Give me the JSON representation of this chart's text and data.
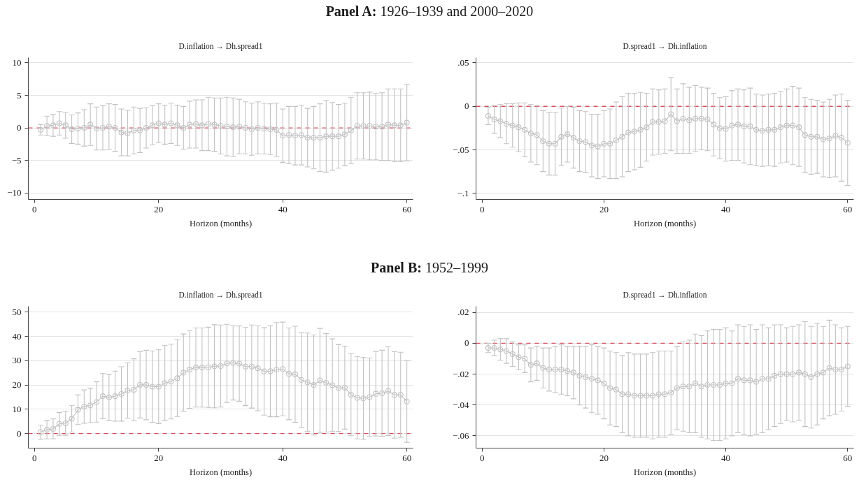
{
  "chart_data": [
    {
      "type": "line",
      "title": "Panel A: 1926–1939 and 2000–2020",
      "subtitle": "D.inflation → Dh.spread1",
      "xlabel": "Horizon (months)",
      "color": "#c2c2c2",
      "marker": "circle",
      "line_style": "solid",
      "grid": "y",
      "xlim": [
        -1,
        61
      ],
      "xticks": [
        0,
        20,
        40,
        60
      ],
      "ylim": [
        -11,
        10.8
      ],
      "yticks": [
        {
          "value": -10,
          "label": "−10"
        },
        {
          "value": -5,
          "label": "−5"
        },
        0,
        5,
        10
      ],
      "ref_lines": [
        {
          "axis": "y",
          "value": 0,
          "color": "#d5505f",
          "line_style": "dashed"
        }
      ],
      "x": [
        1,
        2,
        3,
        4,
        5,
        6,
        7,
        8,
        9,
        10,
        11,
        12,
        13,
        14,
        15,
        16,
        17,
        18,
        19,
        20,
        21,
        22,
        23,
        24,
        25,
        26,
        27,
        28,
        29,
        30,
        31,
        32,
        33,
        34,
        35,
        36,
        37,
        38,
        39,
        40,
        41,
        42,
        43,
        44,
        45,
        46,
        47,
        48,
        49,
        50,
        51,
        52,
        53,
        54,
        55,
        56,
        57,
        58,
        59,
        60
      ],
      "values": [
        -0.3,
        0.3,
        0.4,
        0.7,
        0.4,
        -0.2,
        -0.1,
        0.0,
        0.5,
        -0.1,
        0.0,
        0.2,
        0.0,
        -0.7,
        -0.8,
        -0.4,
        -0.4,
        0.0,
        0.4,
        0.7,
        0.5,
        0.7,
        0.4,
        0.0,
        0.5,
        0.6,
        0.4,
        0.6,
        0.5,
        0.3,
        0.2,
        0.1,
        0.2,
        0.0,
        -0.2,
        0.0,
        -0.1,
        -0.2,
        -0.3,
        -1.2,
        -1.1,
        -1.2,
        -1.1,
        -1.5,
        -1.5,
        -1.5,
        -1.3,
        -1.3,
        -1.3,
        -1.0,
        -0.4,
        0.3,
        0.3,
        0.3,
        0.2,
        0.2,
        0.5,
        0.4,
        0.4,
        0.8
      ],
      "errors": [
        0.8,
        1.5,
        1.7,
        1.8,
        2.0,
        2.2,
        2.4,
        2.8,
        3.2,
        3.3,
        3.4,
        3.5,
        3.6,
        3.6,
        3.5,
        3.6,
        3.4,
        3.1,
        3.0,
        3.0,
        3.0,
        3.1,
        3.1,
        3.3,
        3.6,
        3.7,
        3.9,
        4.1,
        4.1,
        4.3,
        4.5,
        4.5,
        4.2,
        4.0,
        4.0,
        4.0,
        3.9,
        3.9,
        4.1,
        4.1,
        4.4,
        4.5,
        4.6,
        4.5,
        4.8,
        5.2,
        5.5,
        5.2,
        4.9,
        4.8,
        5.1,
        5.1,
        5.1,
        5.2,
        5.1,
        5.2,
        5.5,
        5.6,
        5.6,
        5.9
      ]
    },
    {
      "type": "line",
      "subtitle": "D.spread1 → Dh.inflation",
      "xlabel": "Horizon (months)",
      "color": "#c2c2c2",
      "marker": "circle",
      "line_style": "solid",
      "grid": "y",
      "xlim": [
        -1,
        61
      ],
      "xticks": [
        0,
        20,
        40,
        60
      ],
      "ylim": [
        -0.107,
        0.056
      ],
      "yticks": [
        {
          "value": -0.1,
          "label": "−.1"
        },
        {
          "value": -0.05,
          "label": "−.05"
        },
        0,
        {
          "value": 0.05,
          "label": ".05"
        }
      ],
      "ref_lines": [
        {
          "axis": "y",
          "value": 0,
          "color": "#d5505f",
          "line_style": "dashed"
        }
      ],
      "x": [
        1,
        2,
        3,
        4,
        5,
        6,
        7,
        8,
        9,
        10,
        11,
        12,
        13,
        14,
        15,
        16,
        17,
        18,
        19,
        20,
        21,
        22,
        23,
        24,
        25,
        26,
        27,
        28,
        29,
        30,
        31,
        32,
        33,
        34,
        35,
        36,
        37,
        38,
        39,
        40,
        41,
        42,
        43,
        44,
        45,
        46,
        47,
        48,
        49,
        50,
        51,
        52,
        53,
        54,
        55,
        56,
        57,
        58,
        59,
        60
      ],
      "values": [
        -0.011,
        -0.015,
        -0.017,
        -0.02,
        -0.022,
        -0.024,
        -0.027,
        -0.031,
        -0.033,
        -0.04,
        -0.043,
        -0.043,
        -0.035,
        -0.032,
        -0.036,
        -0.04,
        -0.041,
        -0.045,
        -0.046,
        -0.043,
        -0.043,
        -0.039,
        -0.035,
        -0.03,
        -0.029,
        -0.027,
        -0.024,
        -0.018,
        -0.018,
        -0.017,
        -0.009,
        -0.017,
        -0.014,
        -0.016,
        -0.014,
        -0.014,
        -0.015,
        -0.021,
        -0.025,
        -0.026,
        -0.022,
        -0.021,
        -0.023,
        -0.023,
        -0.027,
        -0.028,
        -0.027,
        -0.027,
        -0.024,
        -0.022,
        -0.022,
        -0.024,
        -0.033,
        -0.035,
        -0.035,
        -0.038,
        -0.037,
        -0.034,
        -0.036,
        -0.042
      ],
      "errors": [
        0.01,
        0.016,
        0.019,
        0.023,
        0.025,
        0.028,
        0.031,
        0.033,
        0.034,
        0.035,
        0.036,
        0.036,
        0.033,
        0.032,
        0.035,
        0.035,
        0.035,
        0.036,
        0.037,
        0.038,
        0.04,
        0.044,
        0.046,
        0.045,
        0.044,
        0.043,
        0.039,
        0.038,
        0.037,
        0.037,
        0.042,
        0.037,
        0.04,
        0.038,
        0.038,
        0.036,
        0.036,
        0.036,
        0.035,
        0.037,
        0.04,
        0.041,
        0.042,
        0.044,
        0.041,
        0.041,
        0.041,
        0.042,
        0.041,
        0.042,
        0.045,
        0.045,
        0.043,
        0.043,
        0.042,
        0.043,
        0.045,
        0.047,
        0.05,
        0.049
      ]
    },
    {
      "type": "line",
      "title": "Panel B: 1952–1999",
      "subtitle": "D.inflation → Dh.spread1",
      "xlabel": "Horizon (months)",
      "color": "#c2c2c2",
      "marker": "circle",
      "line_style": "solid",
      "grid": "y",
      "xlim": [
        -1,
        61
      ],
      "xticks": [
        0,
        20,
        40,
        60
      ],
      "ylim": [
        -6,
        52.4
      ],
      "yticks": [
        0,
        10,
        20,
        30,
        40,
        50
      ],
      "ref_lines": [
        {
          "axis": "y",
          "value": 0,
          "color": "#d5505f",
          "line_style": "dashed"
        }
      ],
      "x": [
        1,
        2,
        3,
        4,
        5,
        6,
        7,
        8,
        9,
        10,
        11,
        12,
        13,
        14,
        15,
        16,
        17,
        18,
        19,
        20,
        21,
        22,
        23,
        24,
        25,
        26,
        27,
        28,
        29,
        30,
        31,
        32,
        33,
        34,
        35,
        36,
        37,
        38,
        39,
        40,
        41,
        42,
        43,
        44,
        45,
        46,
        47,
        48,
        49,
        50,
        51,
        52,
        53,
        54,
        55,
        56,
        57,
        58,
        59,
        60
      ],
      "values": [
        0.6,
        1.6,
        1.9,
        4.0,
        4.2,
        6.1,
        9.8,
        11.1,
        11.6,
        13.0,
        15.4,
        14.9,
        15.4,
        16.3,
        17.7,
        18.0,
        20.1,
        20.0,
        19.3,
        19.3,
        20.8,
        21.4,
        22.8,
        25.1,
        26.4,
        27.2,
        27.2,
        27.3,
        27.7,
        27.8,
        28.9,
        29.1,
        28.8,
        27.6,
        27.6,
        26.9,
        25.6,
        25.7,
        26.3,
        26.6,
        24.6,
        24.4,
        22.1,
        21.1,
        20.0,
        21.9,
        20.9,
        19.9,
        18.7,
        18.9,
        16.0,
        14.7,
        14.5,
        15.0,
        16.4,
        16.6,
        17.5,
        15.9,
        16.0,
        13.2
      ],
      "errors": [
        2.9,
        3.8,
        4.1,
        4.7,
        4.9,
        5.5,
        6.1,
        6.9,
        7.1,
        8.3,
        9.3,
        9.5,
        10.3,
        11.2,
        11.4,
        12.8,
        13.7,
        14.3,
        14.7,
        15.2,
        15.4,
        15.4,
        15.8,
        15.9,
        16.0,
        16.3,
        16.3,
        16.5,
        17.1,
        16.9,
        16.1,
        15.3,
        15.5,
        16.1,
        17.1,
        17.5,
        18.0,
        18.8,
        19.4,
        19.3,
        18.9,
        19.8,
        19.5,
        20.3,
        20.6,
        21.4,
        20.3,
        19.1,
        17.9,
        17.1,
        16.9,
        16.9,
        16.9,
        16.1,
        17.4,
        17.7,
        18.3,
        17.8,
        17.5,
        16.8
      ]
    },
    {
      "type": "line",
      "subtitle": "D.spread1 → Dh.inflation",
      "xlabel": "Horizon (months)",
      "color": "#c2c2c2",
      "marker": "circle",
      "line_style": "solid",
      "grid": "y",
      "xlim": [
        -1,
        61
      ],
      "xticks": [
        0,
        20,
        40,
        60
      ],
      "ylim": [
        -0.068,
        0.024
      ],
      "yticks": [
        {
          "value": -0.06,
          "label": "−.06"
        },
        {
          "value": -0.04,
          "label": "−.04"
        },
        {
          "value": -0.02,
          "label": "−.02"
        },
        0,
        {
          "value": 0.02,
          "label": ".02"
        }
      ],
      "ref_lines": [
        {
          "axis": "y",
          "value": 0,
          "color": "#d5505f",
          "line_style": "dashed"
        }
      ],
      "x": [
        1,
        2,
        3,
        4,
        5,
        6,
        7,
        8,
        9,
        10,
        11,
        12,
        13,
        14,
        15,
        16,
        17,
        18,
        19,
        20,
        21,
        22,
        23,
        24,
        25,
        26,
        27,
        28,
        29,
        30,
        31,
        32,
        33,
        34,
        35,
        36,
        37,
        38,
        39,
        40,
        41,
        42,
        43,
        44,
        45,
        46,
        47,
        48,
        49,
        50,
        51,
        52,
        53,
        54,
        55,
        56,
        57,
        58,
        59,
        60
      ],
      "values": [
        -0.003,
        -0.003,
        -0.004,
        -0.005,
        -0.007,
        -0.009,
        -0.01,
        -0.014,
        -0.013,
        -0.016,
        -0.017,
        -0.017,
        -0.017,
        -0.018,
        -0.019,
        -0.021,
        -0.022,
        -0.023,
        -0.024,
        -0.026,
        -0.029,
        -0.03,
        -0.033,
        -0.033,
        -0.034,
        -0.034,
        -0.034,
        -0.034,
        -0.033,
        -0.033,
        -0.032,
        -0.029,
        -0.028,
        -0.028,
        -0.026,
        -0.028,
        -0.027,
        -0.027,
        -0.027,
        -0.026,
        -0.026,
        -0.023,
        -0.024,
        -0.024,
        -0.025,
        -0.023,
        -0.023,
        -0.021,
        -0.02,
        -0.02,
        -0.02,
        -0.019,
        -0.02,
        -0.022,
        -0.02,
        -0.019,
        -0.016,
        -0.017,
        -0.017,
        -0.015
      ],
      "errors": [
        0.003,
        0.005,
        0.007,
        0.008,
        0.008,
        0.008,
        0.009,
        0.011,
        0.011,
        0.013,
        0.014,
        0.015,
        0.016,
        0.016,
        0.017,
        0.019,
        0.02,
        0.022,
        0.022,
        0.023,
        0.024,
        0.024,
        0.025,
        0.027,
        0.027,
        0.027,
        0.027,
        0.028,
        0.028,
        0.028,
        0.027,
        0.027,
        0.029,
        0.03,
        0.032,
        0.033,
        0.035,
        0.036,
        0.036,
        0.036,
        0.034,
        0.035,
        0.035,
        0.036,
        0.034,
        0.035,
        0.033,
        0.033,
        0.032,
        0.03,
        0.031,
        0.031,
        0.034,
        0.033,
        0.033,
        0.03,
        0.031,
        0.029,
        0.027,
        0.026
      ]
    }
  ]
}
